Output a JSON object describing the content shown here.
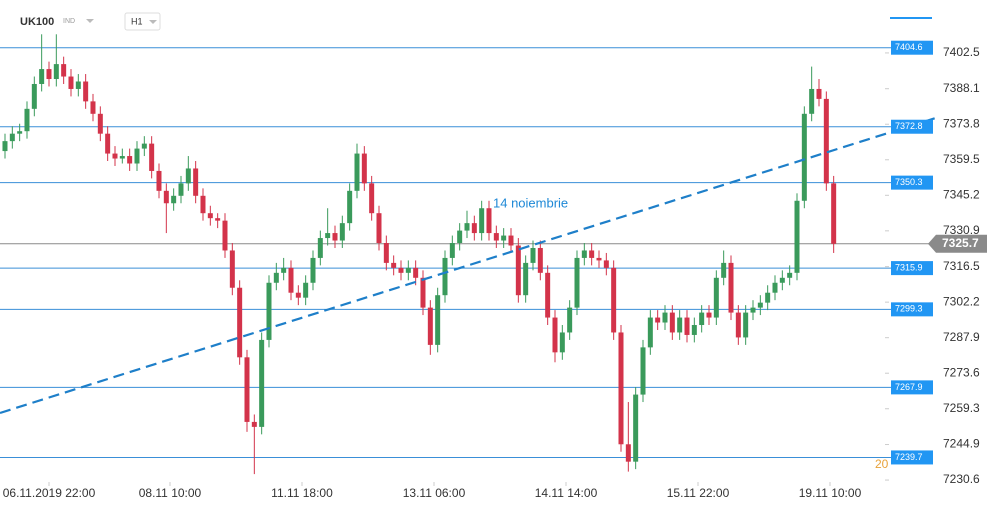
{
  "header": {
    "symbol": "UK100",
    "market": "IND",
    "timeframe": "H1"
  },
  "chart_data": {
    "type": "candlestick",
    "annotation": "14 noiembrie",
    "annotation2": "20",
    "up_color": "#3a9a5b",
    "down_color": "#d3334a",
    "level_color": "#3a8fd8",
    "price_color": "#8a8a8a",
    "xlim": [
      -0.68,
      120
    ],
    "ylim": [
      7226.6,
      7423.8
    ],
    "xticks": [
      {
        "value": 6,
        "label": "06.11.2019 22:00"
      },
      {
        "value": 22.5,
        "label": "08.11 10:00"
      },
      {
        "value": 40.5,
        "label": "11.11 18:00"
      },
      {
        "value": 58.5,
        "label": "13.11 06:00"
      },
      {
        "value": 76.5,
        "label": "14.11 14:00"
      },
      {
        "value": 94.5,
        "label": "15.11 22:00"
      },
      {
        "value": 112.5,
        "label": "19.11 10:00"
      }
    ],
    "yticks": [
      7402.5,
      7388.1,
      7373.8,
      7359.5,
      7345.2,
      7330.9,
      7316.5,
      7302.2,
      7287.9,
      7273.6,
      7259.3,
      7244.9,
      7230.6
    ],
    "levels": [
      7404.6,
      7372.8,
      7350.3,
      7315.9,
      7299.3,
      7267.9,
      7239.7
    ],
    "trendline": {
      "x": [
        -0.68,
        126.9
      ],
      "values": [
        7257.6,
        7376.3
      ]
    },
    "candles": [
      [
        7363,
        7370,
        7360,
        7367
      ],
      [
        7367,
        7373,
        7364,
        7370
      ],
      [
        7370,
        7374,
        7367,
        7371
      ],
      [
        7371,
        7383,
        7368,
        7380
      ],
      [
        7380,
        7393,
        7377,
        7390
      ],
      [
        7390,
        7410,
        7387,
        7396
      ],
      [
        7396,
        7399,
        7389,
        7392
      ],
      [
        7392,
        7410,
        7389,
        7398
      ],
      [
        7398,
        7401,
        7390,
        7393
      ],
      [
        7393,
        7396,
        7385,
        7388
      ],
      [
        7388,
        7394,
        7385,
        7391
      ],
      [
        7391,
        7394,
        7380,
        7383
      ],
      [
        7383,
        7386,
        7375,
        7378
      ],
      [
        7378,
        7381,
        7367,
        7370
      ],
      [
        7370,
        7373,
        7359,
        7362
      ],
      [
        7362,
        7365,
        7357,
        7360
      ],
      [
        7360,
        7364,
        7358,
        7361
      ],
      [
        7361,
        7364,
        7355,
        7358
      ],
      [
        7358,
        7367,
        7355,
        7364
      ],
      [
        7364,
        7369,
        7361,
        7366
      ],
      [
        7366,
        7369,
        7352,
        7355
      ],
      [
        7355,
        7358,
        7344,
        7347
      ],
      [
        7347,
        7350,
        7330,
        7342
      ],
      [
        7342,
        7348,
        7339,
        7345
      ],
      [
        7345,
        7353,
        7342,
        7350
      ],
      [
        7350,
        7361,
        7347,
        7356
      ],
      [
        7356,
        7359,
        7342,
        7345
      ],
      [
        7345,
        7348,
        7335,
        7338
      ],
      [
        7338,
        7341,
        7333,
        7336
      ],
      [
        7336,
        7338,
        7332,
        7335
      ],
      [
        7335,
        7338,
        7320,
        7323
      ],
      [
        7323,
        7326,
        7305,
        7308
      ],
      [
        7308,
        7311,
        7277,
        7280
      ],
      [
        7280,
        7283,
        7250,
        7254
      ],
      [
        7254,
        7257,
        7233,
        7252
      ],
      [
        7252,
        7290,
        7249,
        7287
      ],
      [
        7287,
        7313,
        7284,
        7310
      ],
      [
        7310,
        7318,
        7307,
        7314
      ],
      [
        7314,
        7320,
        7311,
        7316
      ],
      [
        7316,
        7319,
        7303,
        7306
      ],
      [
        7306,
        7309,
        7301,
        7304
      ],
      [
        7304,
        7313,
        7301,
        7310
      ],
      [
        7310,
        7323,
        7307,
        7320
      ],
      [
        7320,
        7331,
        7317,
        7328
      ],
      [
        7328,
        7340,
        7325,
        7330
      ],
      [
        7330,
        7333,
        7324,
        7327
      ],
      [
        7327,
        7337,
        7324,
        7334
      ],
      [
        7334,
        7350,
        7331,
        7347
      ],
      [
        7347,
        7366,
        7344,
        7362
      ],
      [
        7362,
        7365,
        7347,
        7350
      ],
      [
        7350,
        7353,
        7335,
        7338
      ],
      [
        7338,
        7341,
        7323,
        7326
      ],
      [
        7326,
        7329,
        7315,
        7318
      ],
      [
        7318,
        7321,
        7313,
        7316
      ],
      [
        7316,
        7319,
        7311,
        7314
      ],
      [
        7314,
        7319,
        7311,
        7316
      ],
      [
        7316,
        7319,
        7309,
        7312
      ],
      [
        7312,
        7315,
        7297,
        7300
      ],
      [
        7300,
        7303,
        7281,
        7285
      ],
      [
        7285,
        7308,
        7282,
        7305
      ],
      [
        7305,
        7323,
        7302,
        7320
      ],
      [
        7320,
        7329,
        7317,
        7326
      ],
      [
        7326,
        7334,
        7323,
        7331
      ],
      [
        7331,
        7339,
        7328,
        7334
      ],
      [
        7334,
        7337,
        7327,
        7330
      ],
      [
        7330,
        7343,
        7327,
        7340
      ],
      [
        7340,
        7343,
        7327,
        7330
      ],
      [
        7330,
        7333,
        7324,
        7327
      ],
      [
        7327,
        7332,
        7324,
        7329
      ],
      [
        7329,
        7332,
        7322,
        7325
      ],
      [
        7325,
        7328,
        7302,
        7305
      ],
      [
        7305,
        7321,
        7302,
        7318
      ],
      [
        7318,
        7327,
        7315,
        7324
      ],
      [
        7324,
        7327,
        7311,
        7314
      ],
      [
        7314,
        7317,
        7293,
        7296
      ],
      [
        7296,
        7299,
        7278,
        7282
      ],
      [
        7282,
        7293,
        7279,
        7290
      ],
      [
        7290,
        7303,
        7287,
        7300
      ],
      [
        7300,
        7323,
        7297,
        7320
      ],
      [
        7320,
        7326,
        7317,
        7323
      ],
      [
        7323,
        7326,
        7317,
        7320
      ],
      [
        7320,
        7323,
        7316,
        7319
      ],
      [
        7319,
        7322,
        7313,
        7316
      ],
      [
        7316,
        7319,
        7287,
        7290
      ],
      [
        7290,
        7293,
        7242,
        7245
      ],
      [
        7245,
        7262,
        7234,
        7238
      ],
      [
        7238,
        7268,
        7235,
        7265
      ],
      [
        7265,
        7287,
        7262,
        7284
      ],
      [
        7284,
        7299,
        7281,
        7296
      ],
      [
        7296,
        7299,
        7291,
        7294
      ],
      [
        7294,
        7301,
        7291,
        7298
      ],
      [
        7298,
        7301,
        7287,
        7290
      ],
      [
        7290,
        7299,
        7287,
        7296
      ],
      [
        7296,
        7299,
        7286,
        7289
      ],
      [
        7289,
        7296,
        7286,
        7293
      ],
      [
        7293,
        7301,
        7290,
        7298
      ],
      [
        7298,
        7301,
        7293,
        7296
      ],
      [
        7296,
        7315,
        7293,
        7312
      ],
      [
        7312,
        7323,
        7309,
        7318
      ],
      [
        7318,
        7321,
        7295,
        7298
      ],
      [
        7298,
        7301,
        7285,
        7288
      ],
      [
        7288,
        7301,
        7285,
        7298
      ],
      [
        7298,
        7303,
        7295,
        7300
      ],
      [
        7300,
        7305,
        7297,
        7302
      ],
      [
        7302,
        7309,
        7299,
        7306
      ],
      [
        7306,
        7313,
        7303,
        7310
      ],
      [
        7310,
        7315,
        7307,
        7312
      ],
      [
        7312,
        7317,
        7309,
        7314
      ],
      [
        7314,
        7346,
        7311,
        7343
      ],
      [
        7343,
        7381,
        7340,
        7378
      ],
      [
        7378,
        7397,
        7375,
        7388
      ],
      [
        7388,
        7392,
        7381,
        7384
      ],
      [
        7384,
        7387,
        7347,
        7350
      ],
      [
        7350,
        7353,
        7322,
        7325.7
      ]
    ]
  }
}
